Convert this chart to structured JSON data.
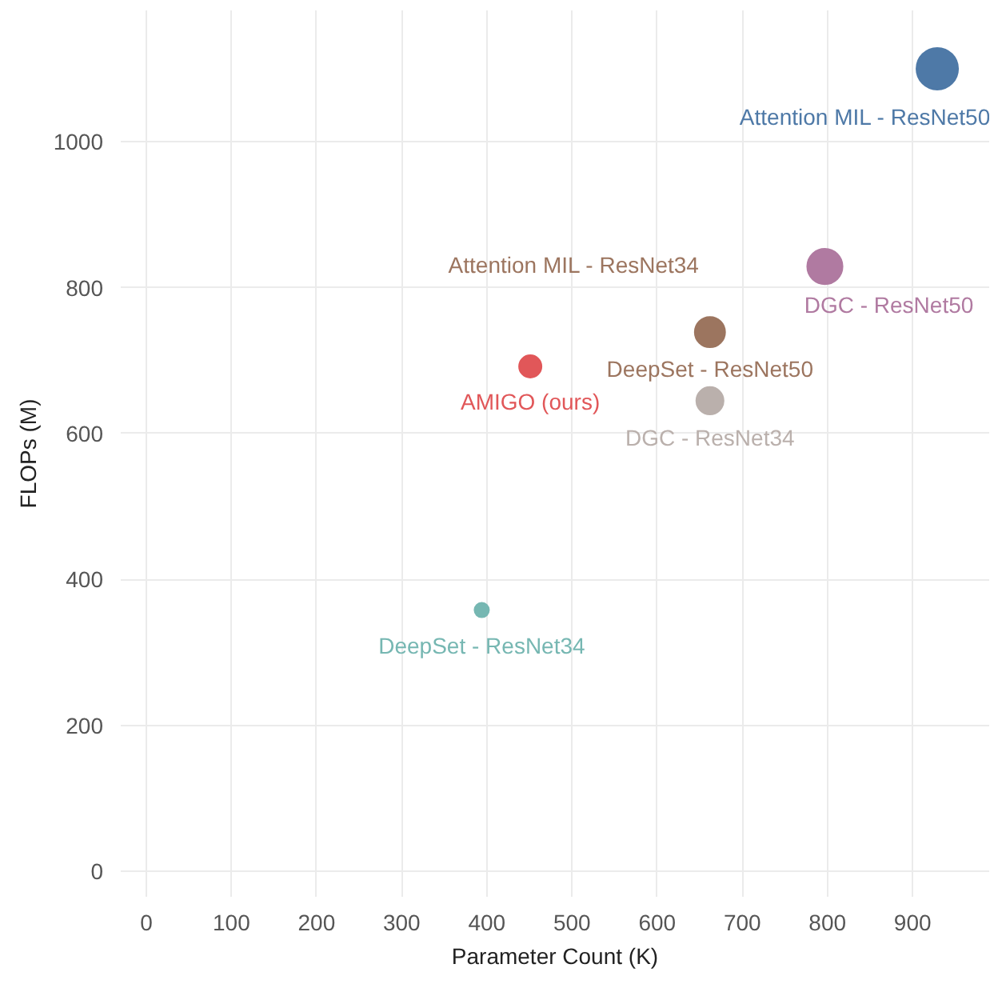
{
  "chart_data": {
    "type": "bubble",
    "xlabel": "Parameter Count (K)",
    "ylabel": "FLOPs (M)",
    "xlim": [
      -30,
      990
    ],
    "ylim": [
      -35,
      1180
    ],
    "xticks": [
      0,
      100,
      200,
      300,
      400,
      500,
      600,
      700,
      800,
      900
    ],
    "yticks": [
      0,
      200,
      400,
      600,
      800,
      1000
    ],
    "grid": true,
    "annotations": [
      {
        "text": "Attention MIL - ResNet34",
        "x": 662,
        "y": 739
      }
    ],
    "series": [
      {
        "name": "Attention MIL - ResNet50",
        "color": "#4e79a7",
        "x": [
          929
        ],
        "values": [
          1100
        ],
        "sizes": [
          1
        ]
      },
      {
        "name": "DGC - ResNet50",
        "color": "#b07aa1",
        "x": [
          797
        ],
        "values": [
          829
        ],
        "sizes": [
          0.72
        ]
      },
      {
        "name": "DeepSet - ResNet50",
        "color": "#9c755f",
        "x": [
          662
        ],
        "values": [
          739
        ],
        "sizes": [
          0.53
        ]
      },
      {
        "name": "DGC - ResNet34",
        "color": "#bab0ac",
        "x": [
          662
        ],
        "values": [
          645
        ],
        "sizes": [
          0.43
        ]
      },
      {
        "name": "AMIGO (ours)",
        "color": "#e15759",
        "x": [
          451
        ],
        "values": [
          692
        ],
        "sizes": [
          0.29
        ]
      },
      {
        "name": "DeepSet - ResNet34",
        "color": "#76b7b2",
        "x": [
          394
        ],
        "values": [
          358
        ],
        "sizes": [
          0.12
        ]
      }
    ]
  }
}
